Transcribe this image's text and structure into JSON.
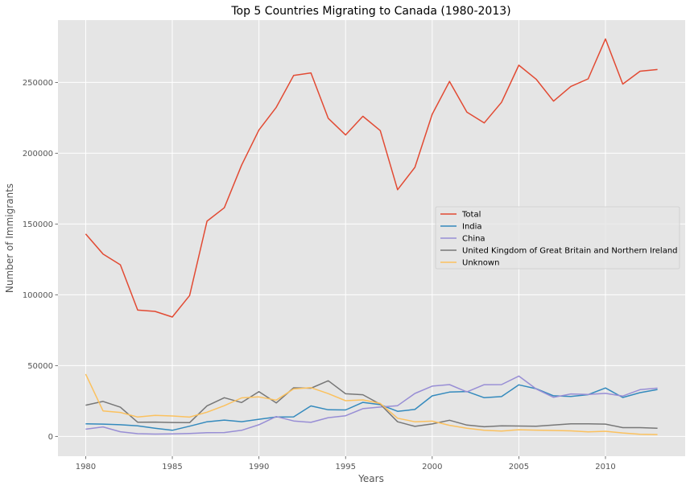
{
  "chart_data": {
    "type": "line",
    "title": "Top 5 Countries Migrating to Canada (1980-2013)",
    "xlabel": "Years",
    "ylabel": "Number of Immigrants",
    "xlim": [
      1978.4,
      2014.6
    ],
    "ylim": [
      -14000,
      294000
    ],
    "xticks": [
      1980,
      1985,
      1990,
      1995,
      2000,
      2005,
      2010
    ],
    "yticks": [
      0,
      50000,
      100000,
      150000,
      200000,
      250000
    ],
    "grid": true,
    "legend_position": "center-right",
    "x": [
      1980,
      1981,
      1982,
      1983,
      1984,
      1985,
      1986,
      1987,
      1988,
      1989,
      1990,
      1991,
      1992,
      1993,
      1994,
      1995,
      1996,
      1997,
      1998,
      1999,
      2000,
      2001,
      2002,
      2003,
      2004,
      2005,
      2006,
      2007,
      2008,
      2009,
      2010,
      2011,
      2012,
      2013
    ],
    "series": [
      {
        "name": "Total",
        "color": "#E24A33",
        "values": [
          143000,
          128800,
          121200,
          89200,
          88300,
          84300,
          99500,
          152000,
          161500,
          191600,
          216400,
          232400,
          254900,
          256700,
          224600,
          212900,
          226100,
          216000,
          174200,
          190000,
          227500,
          250700,
          229000,
          221400,
          235900,
          262200,
          252300,
          236800,
          247200,
          252500,
          280700,
          248800,
          257900,
          259100
        ]
      },
      {
        "name": "India",
        "color": "#348ABD",
        "values": [
          8900,
          8700,
          8200,
          7400,
          5800,
          4300,
          7200,
          10300,
          11500,
          10400,
          12100,
          13700,
          13800,
          21500,
          18800,
          18700,
          24000,
          22400,
          17700,
          19000,
          28600,
          31300,
          31700,
          27300,
          28100,
          36400,
          33700,
          28700,
          28200,
          29500,
          34200,
          27500,
          30900,
          33100
        ]
      },
      {
        "name": "China",
        "color": "#988ED5",
        "values": [
          5100,
          6700,
          3300,
          1900,
          1600,
          1800,
          2100,
          2600,
          2700,
          4300,
          8200,
          14000,
          10900,
          9900,
          13200,
          14600,
          19600,
          20700,
          21700,
          30300,
          35500,
          36600,
          31400,
          36500,
          36600,
          42600,
          33500,
          27600,
          30000,
          29600,
          30400,
          28500,
          33000,
          34100
        ]
      },
      {
        "name": "United Kingdom of Great Britain and Northern Ireland",
        "color": "#777777",
        "values": [
          22000,
          24700,
          20600,
          10000,
          10100,
          9800,
          9700,
          21600,
          27300,
          23900,
          31600,
          23600,
          34300,
          34000,
          39300,
          30100,
          29400,
          22700,
          10300,
          7100,
          8800,
          11400,
          8000,
          6800,
          7500,
          7300,
          7200,
          8000,
          8900,
          8900,
          8700,
          6200,
          6200,
          5800
        ]
      },
      {
        "name": "Unknown",
        "color": "#FBC15E",
        "values": [
          44000,
          18000,
          16900,
          13700,
          14800,
          14400,
          13600,
          17100,
          21700,
          27200,
          27900,
          25600,
          33500,
          34400,
          30200,
          25200,
          25800,
          23300,
          12800,
          10300,
          10800,
          7800,
          5700,
          4300,
          3800,
          4700,
          4400,
          4200,
          3900,
          3200,
          3600,
          2400,
          1500,
          1300
        ]
      }
    ]
  }
}
